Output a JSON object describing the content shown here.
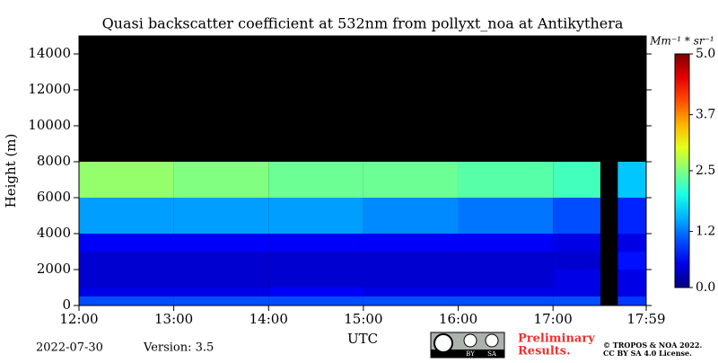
{
  "chart_data": {
    "type": "heatmap",
    "title": "Quasi backscatter coefficient at 532nm from pollyxt_noa at Antikythera",
    "x_label": "UTC",
    "y_label": "Height (m)",
    "x_bins": [
      12,
      13,
      14,
      15,
      16,
      17,
      17.5,
      17.683,
      17.983
    ],
    "y_bins": [
      0,
      500,
      1000,
      2000,
      3000,
      4000,
      6000,
      8000,
      15000
    ],
    "z": [
      [
        1.0,
        1.0,
        1.0,
        1.0,
        1.0,
        1.0,
        null,
        0.9
      ],
      [
        0.5,
        0.5,
        0.6,
        0.5,
        0.5,
        0.5,
        null,
        0.5
      ],
      [
        0.4,
        0.4,
        0.4,
        0.4,
        0.4,
        0.5,
        null,
        0.5
      ],
      [
        0.4,
        0.4,
        0.4,
        0.4,
        0.4,
        0.4,
        null,
        0.7
      ],
      [
        0.6,
        0.6,
        0.6,
        0.6,
        0.6,
        0.5,
        null,
        0.5
      ],
      [
        1.4,
        1.4,
        1.4,
        1.3,
        1.2,
        1.0,
        null,
        0.8
      ],
      [
        2.6,
        2.5,
        2.4,
        2.4,
        2.3,
        2.2,
        null,
        1.6
      ],
      [
        null,
        null,
        null,
        null,
        null,
        null,
        null,
        null
      ]
    ],
    "xlim": [
      12,
      17.983
    ],
    "xticks": [
      {
        "value": 12,
        "label": "12:00"
      },
      {
        "value": 13,
        "label": "13:00"
      },
      {
        "value": 14,
        "label": "14:00"
      },
      {
        "value": 15,
        "label": "15:00"
      },
      {
        "value": 16,
        "label": "16:00"
      },
      {
        "value": 17,
        "label": "17:00"
      },
      {
        "value": 17.983,
        "label": "17:59"
      }
    ],
    "ylim": [
      0,
      15000
    ],
    "yticks": [
      0,
      2000,
      4000,
      6000,
      8000,
      10000,
      12000,
      14000
    ],
    "colorbar_label": "Mm⁻¹ * sr⁻¹",
    "clim": [
      0,
      5
    ],
    "cticks": [
      {
        "value": 0,
        "label": "0.0"
      },
      {
        "value": 1.2,
        "label": "1.2"
      },
      {
        "value": 2.5,
        "label": "2.5"
      },
      {
        "value": 3.7,
        "label": "3.7"
      },
      {
        "value": 5,
        "label": "5.0"
      }
    ],
    "colormap": "jet",
    "date": "2022-07-30",
    "version": "Version: 3.5",
    "preliminary": [
      "Preliminary",
      "Results."
    ],
    "license": [
      "© TROPOS & NOA 2022.",
      "CC BY SA 4.0 License."
    ],
    "badge": [
      "BY",
      "SA"
    ]
  }
}
